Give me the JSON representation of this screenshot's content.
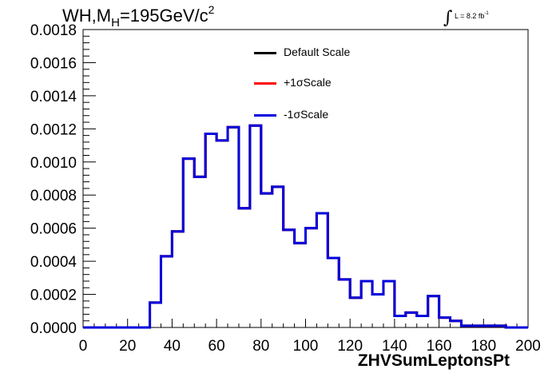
{
  "title": {
    "prefix": "WH,M",
    "subscript": "H",
    "main": "=195GeV/c",
    "superscript": "2"
  },
  "luminosity": {
    "integral": "∫",
    "text": "L = 8.2 fb",
    "superscript": "-1"
  },
  "chart_data": {
    "type": "histogram",
    "xlabel": "ZHVSumLeptonsPt",
    "ylabel": "",
    "xlim": [
      0,
      200
    ],
    "ylim": [
      0,
      0.0018
    ],
    "bin_width": 5,
    "x_ticks": [
      "0",
      "20",
      "40",
      "60",
      "80",
      "100",
      "120",
      "140",
      "160",
      "180",
      "200"
    ],
    "y_ticks": [
      "0.0000",
      "0.0002",
      "0.0004",
      "0.0006",
      "0.0008",
      "0.0010",
      "0.0012",
      "0.0014",
      "0.0016",
      "0.0018"
    ],
    "bin_edges": [
      0,
      5,
      10,
      15,
      20,
      25,
      30,
      35,
      40,
      45,
      50,
      55,
      60,
      65,
      70,
      75,
      80,
      85,
      90,
      95,
      100,
      105,
      110,
      115,
      120,
      125,
      130,
      135,
      140,
      145,
      150,
      155,
      160,
      165,
      170,
      175,
      180,
      185,
      190,
      195,
      200
    ],
    "series": [
      {
        "name": "Default Scale",
        "color": "#000000",
        "values": [
          0,
          0,
          0,
          0,
          0,
          0,
          0.00015,
          0.00043,
          0.00058,
          0.00102,
          0.00091,
          0.00117,
          0.00113,
          0.00121,
          0.00072,
          0.00122,
          0.00081,
          0.00085,
          0.00059,
          0.00051,
          0.0006,
          0.00069,
          0.00042,
          0.00029,
          0.00018,
          0.00028,
          0.0002,
          0.00028,
          7e-05,
          9e-05,
          7e-05,
          0.00019,
          6e-05,
          4e-05,
          1e-05,
          1e-05,
          1e-05,
          1e-05,
          0,
          0
        ]
      },
      {
        "name": "+1σScale",
        "color": "#ff0000",
        "values": [
          0,
          0,
          0,
          0,
          0,
          0,
          0.00015,
          0.00043,
          0.00058,
          0.00102,
          0.00091,
          0.00117,
          0.00113,
          0.00121,
          0.00072,
          0.00122,
          0.00081,
          0.00085,
          0.00059,
          0.00051,
          0.0006,
          0.00069,
          0.00042,
          0.00029,
          0.00018,
          0.00028,
          0.0002,
          0.00028,
          7e-05,
          9e-05,
          7e-05,
          0.00019,
          6e-05,
          4e-05,
          1e-05,
          1e-05,
          1e-05,
          1e-05,
          0,
          0
        ]
      },
      {
        "name": "-1σScale",
        "color": "#0000dd",
        "values": [
          0,
          0,
          0,
          0,
          0,
          0,
          0.00015,
          0.00043,
          0.00058,
          0.00102,
          0.00091,
          0.00117,
          0.00113,
          0.00121,
          0.00072,
          0.00122,
          0.00081,
          0.00085,
          0.00059,
          0.00051,
          0.0006,
          0.00069,
          0.00042,
          0.00029,
          0.00018,
          0.00028,
          0.0002,
          0.00028,
          7e-05,
          9e-05,
          7e-05,
          0.00019,
          6e-05,
          4e-05,
          1e-05,
          1e-05,
          1e-05,
          1e-05,
          0,
          0
        ]
      }
    ],
    "legend_position": "top-center",
    "grid": false
  }
}
